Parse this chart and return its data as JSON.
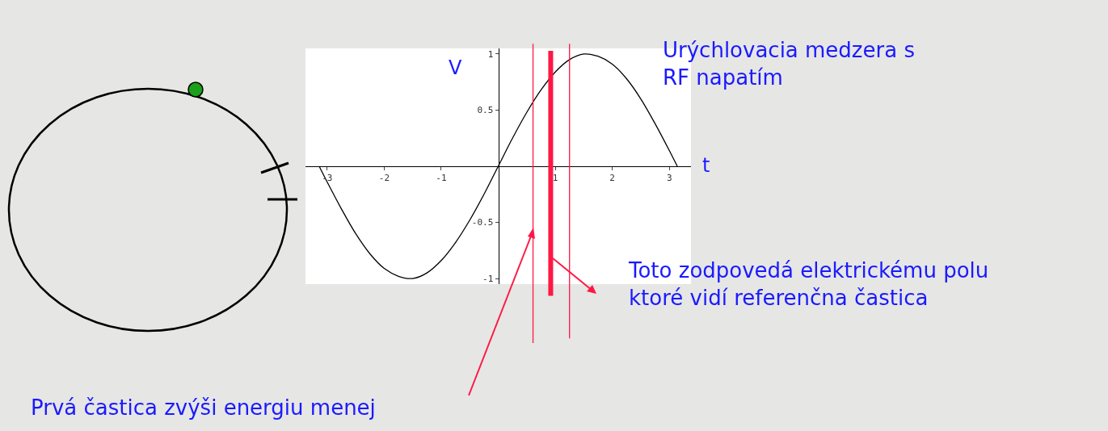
{
  "chart_data": {
    "type": "line",
    "xlabel": "t",
    "ylabel": "V",
    "x": [
      -3.14,
      -3,
      -2.75,
      -2.5,
      -2.25,
      -2,
      -1.75,
      -1.5,
      -1.25,
      -1,
      -0.75,
      -0.5,
      -0.25,
      0,
      0.25,
      0.5,
      0.75,
      1,
      1.25,
      1.5,
      1.75,
      2,
      2.25,
      2.5,
      2.75,
      3,
      3.14
    ],
    "series": [
      {
        "color": "#000000",
        "values": [
          0,
          -0.14,
          -0.38,
          -0.6,
          -0.78,
          -0.91,
          -0.98,
          -1,
          -0.95,
          -0.84,
          -0.68,
          -0.48,
          -0.25,
          0,
          0.25,
          0.48,
          0.68,
          0.84,
          0.95,
          1,
          0.98,
          0.91,
          0.78,
          0.6,
          0.38,
          0.14,
          0
        ]
      }
    ],
    "xlim": [
      -3.38,
      3.38
    ],
    "ylim": [
      -1.05,
      1.05
    ],
    "xticks": [
      -3,
      -2,
      -1,
      1,
      2,
      3
    ],
    "yticks": [
      -1,
      -0.5,
      0.5,
      1
    ],
    "marker": "none",
    "line_style": "solid",
    "ref_lines": [
      {
        "axis": "x",
        "value": 0.61,
        "color": "#ff1744"
      },
      {
        "axis": "x",
        "value": 0.92,
        "color": "#ff1744"
      },
      {
        "axis": "x",
        "value": 1.25,
        "color": "#ff1744"
      }
    ],
    "annotations": [
      "Urýchlovacia medzera s\nRF napatím",
      "Toto zodpovedá elektrickému polu\nktoré vidí referenčna častica",
      "Prvá častica zvýši energiu menej"
    ]
  }
}
